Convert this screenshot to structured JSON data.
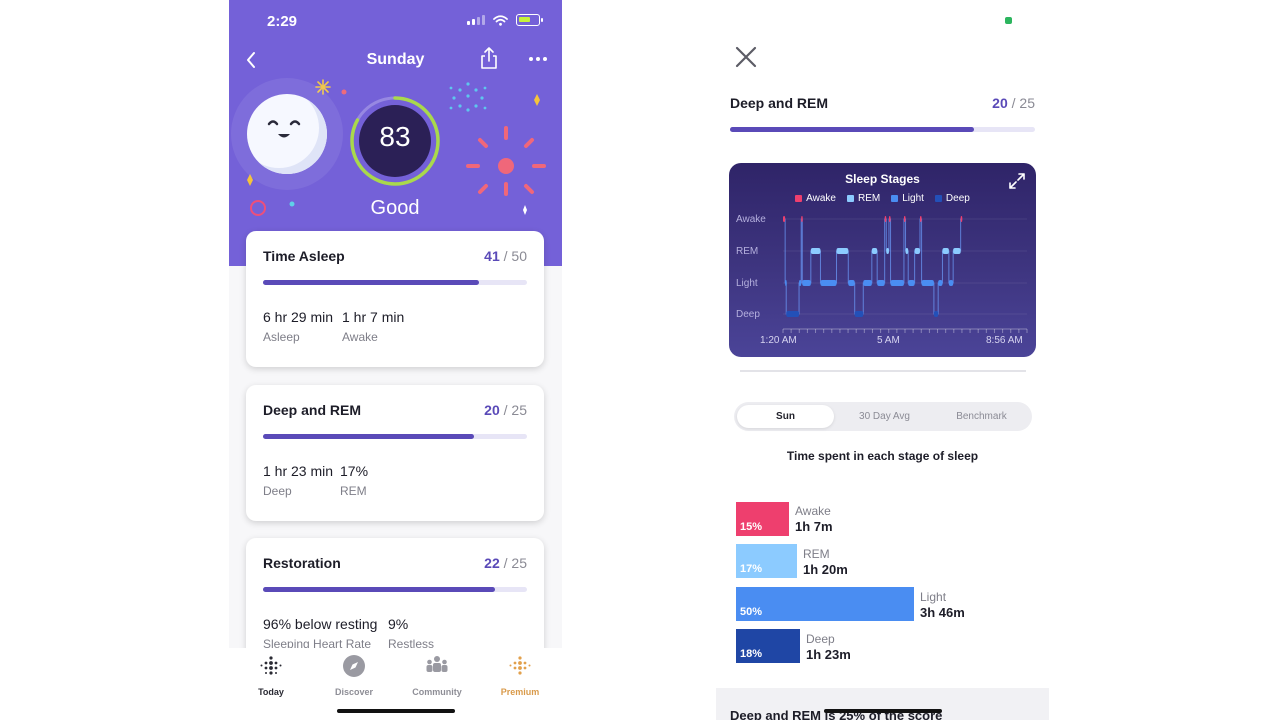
{
  "left": {
    "status": {
      "time": "2:29"
    },
    "nav": {
      "title": "Sunday"
    },
    "score": {
      "value": "83",
      "label": "Good",
      "fraction": 0.83
    },
    "cards": [
      {
        "title": "Time Asleep",
        "score": "41",
        "max": "/ 50",
        "fill": 0.82,
        "stats": [
          {
            "value": "6 hr 29 min",
            "label": "Asleep"
          },
          {
            "value": "1 hr 7 min",
            "label": "Awake"
          }
        ]
      },
      {
        "title": "Deep and REM",
        "score": "20",
        "max": "/ 25",
        "fill": 0.8,
        "stats": [
          {
            "value": "1 hr 23 min",
            "label": "Deep"
          },
          {
            "value": "17%",
            "label": "REM"
          }
        ]
      },
      {
        "title": "Restoration",
        "score": "22",
        "max": "/ 25",
        "fill": 0.88,
        "stats": [
          {
            "value": "96% below resting",
            "label": "Sleeping Heart Rate"
          },
          {
            "value": "9%",
            "label": "Restless"
          }
        ]
      }
    ],
    "tabs": [
      {
        "label": "Today",
        "icon": "fitbit-dots-icon"
      },
      {
        "label": "Discover",
        "icon": "compass-icon"
      },
      {
        "label": "Community",
        "icon": "community-icon"
      },
      {
        "label": "Premium",
        "icon": "premium-dots-icon"
      }
    ]
  },
  "right": {
    "header": {
      "title": "Deep and REM",
      "score": "20",
      "max": "/ 25",
      "fill": 0.8
    },
    "chart_data": {
      "type": "line",
      "title": "Sleep Stages",
      "legend": [
        "Awake",
        "REM",
        "Light",
        "Deep"
      ],
      "colors": {
        "Awake": "#ee3f6e",
        "REM": "#8ccbff",
        "Light": "#4a8df2",
        "Deep": "#2350b8"
      },
      "stages": [
        "Awake",
        "REM",
        "Light",
        "Deep"
      ],
      "x_ticks": [
        "1:20 AM",
        "5 AM",
        "8:56 AM"
      ],
      "x_domain_minutes": [
        0,
        456
      ],
      "segments": [
        {
          "stage": "Awake",
          "start": 0,
          "end": 4
        },
        {
          "stage": "Light",
          "start": 4,
          "end": 6
        },
        {
          "stage": "Deep",
          "start": 6,
          "end": 30
        },
        {
          "stage": "Light",
          "start": 30,
          "end": 34
        },
        {
          "stage": "Awake",
          "start": 34,
          "end": 36
        },
        {
          "stage": "Light",
          "start": 36,
          "end": 52
        },
        {
          "stage": "REM",
          "start": 52,
          "end": 70
        },
        {
          "stage": "Light",
          "start": 70,
          "end": 100
        },
        {
          "stage": "REM",
          "start": 100,
          "end": 122
        },
        {
          "stage": "Light",
          "start": 122,
          "end": 134
        },
        {
          "stage": "Deep",
          "start": 134,
          "end": 150
        },
        {
          "stage": "Light",
          "start": 150,
          "end": 166
        },
        {
          "stage": "REM",
          "start": 166,
          "end": 176
        },
        {
          "stage": "Light",
          "start": 176,
          "end": 190
        },
        {
          "stage": "Awake",
          "start": 190,
          "end": 193
        },
        {
          "stage": "REM",
          "start": 193,
          "end": 198
        },
        {
          "stage": "Awake",
          "start": 198,
          "end": 201
        },
        {
          "stage": "Light",
          "start": 201,
          "end": 226
        },
        {
          "stage": "Awake",
          "start": 226,
          "end": 229
        },
        {
          "stage": "REM",
          "start": 229,
          "end": 234
        },
        {
          "stage": "Light",
          "start": 234,
          "end": 246
        },
        {
          "stage": "REM",
          "start": 246,
          "end": 256
        },
        {
          "stage": "Awake",
          "start": 256,
          "end": 259
        },
        {
          "stage": "Light",
          "start": 259,
          "end": 282
        },
        {
          "stage": "Deep",
          "start": 282,
          "end": 290
        },
        {
          "stage": "Light",
          "start": 290,
          "end": 298
        },
        {
          "stage": "REM",
          "start": 298,
          "end": 310
        },
        {
          "stage": "Light",
          "start": 310,
          "end": 318
        },
        {
          "stage": "REM",
          "start": 318,
          "end": 332
        },
        {
          "stage": "Awake",
          "start": 332,
          "end": 335
        }
      ]
    },
    "segmented": [
      "Sun",
      "30 Day Avg",
      "Benchmark"
    ],
    "stage_heading": "Time spent in each stage of sleep",
    "distribution": [
      {
        "name": "Awake",
        "pct": "15%",
        "time": "1h 7m",
        "value": 15,
        "color": "#ee3f6e"
      },
      {
        "name": "REM",
        "pct": "17%",
        "time": "1h 20m",
        "value": 17,
        "color": "#8ccbff"
      },
      {
        "name": "Light",
        "pct": "50%",
        "time": "3h 46m",
        "value": 50,
        "color": "#4a8df2"
      },
      {
        "name": "Deep",
        "pct": "18%",
        "time": "1h 23m",
        "value": 18,
        "color": "#1f46a5"
      }
    ],
    "footer": "Deep and REM is 25% of the score"
  }
}
